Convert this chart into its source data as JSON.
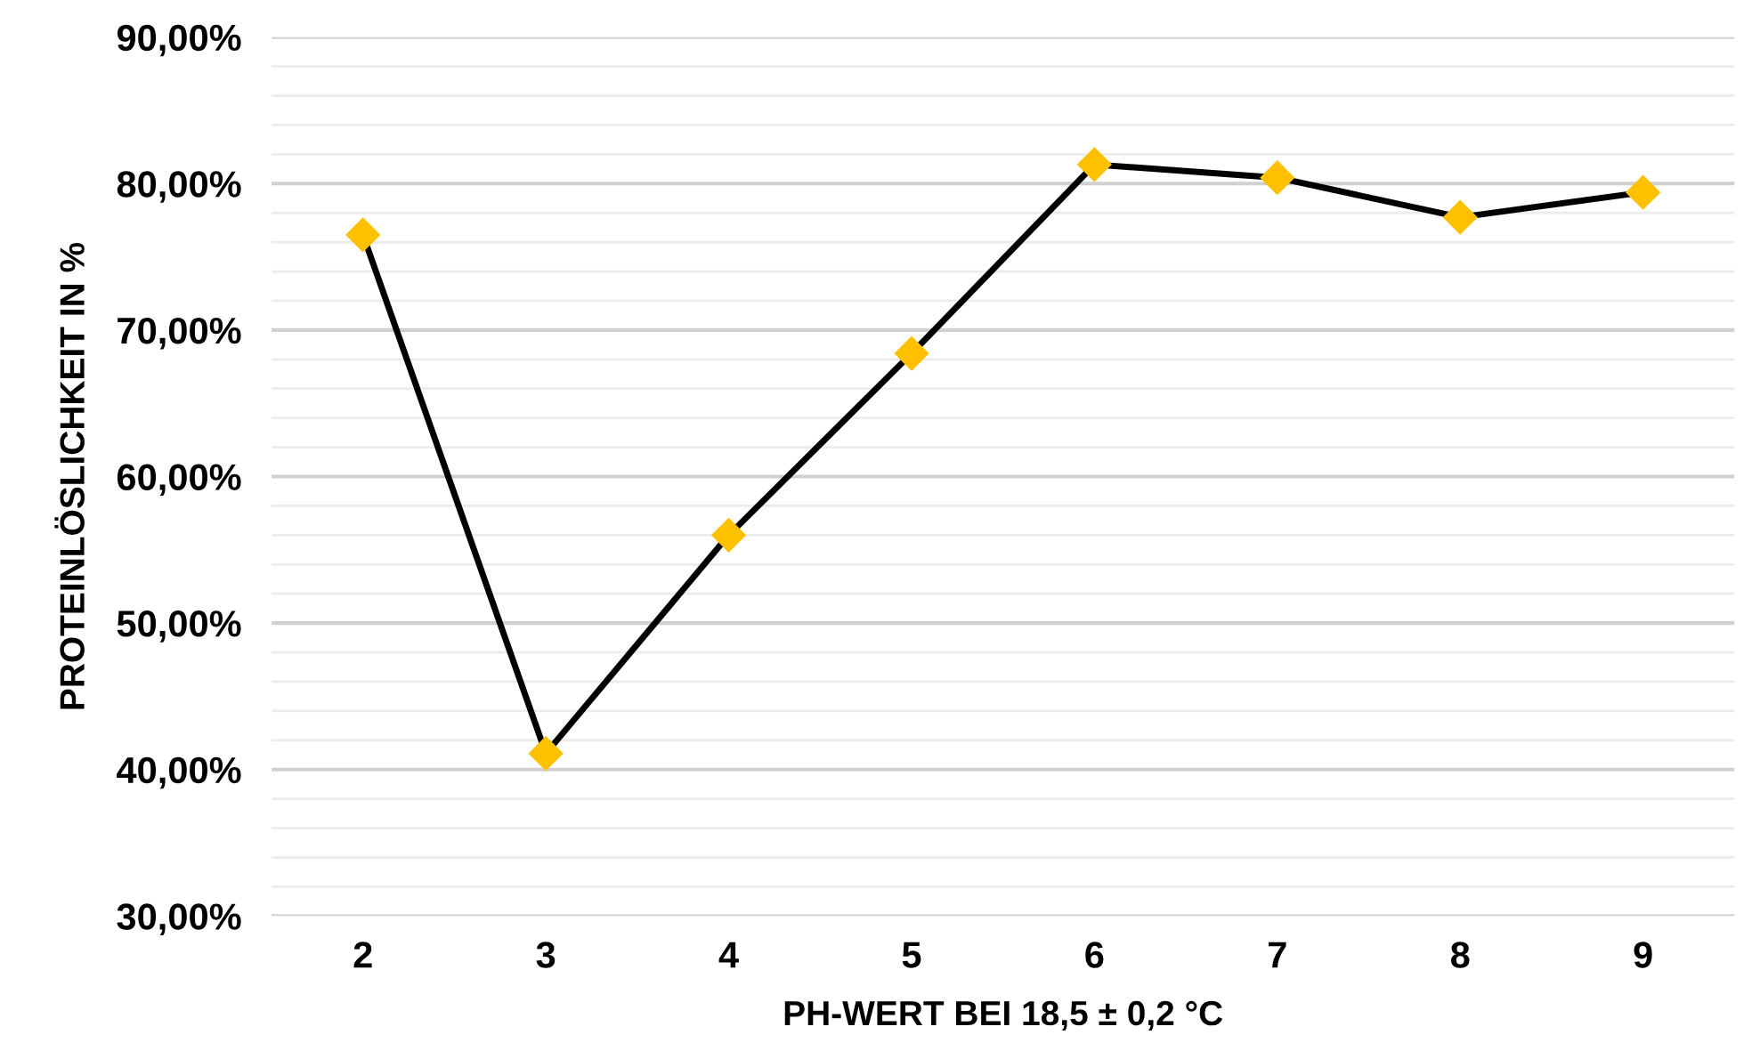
{
  "chart_data": {
    "type": "line",
    "xlabel": "PH-WERT BEI 18,5 ± 0,2 °C",
    "ylabel": "PROTEINLÖSLICHKEIT IN %",
    "categories": [
      "2",
      "3",
      "4",
      "5",
      "6",
      "7",
      "8",
      "9"
    ],
    "series": [
      {
        "color": "#ffc000",
        "values": [
          76.5,
          41.1,
          56.0,
          68.4,
          81.3,
          80.4,
          77.7,
          79.4
        ]
      }
    ],
    "marker": "diamond",
    "line_style": "solid",
    "grid": "y",
    "ylim": [
      30,
      90
    ],
    "yticks": [
      {
        "value": 30,
        "label": "30,00%"
      },
      {
        "value": 32,
        "label": null
      },
      {
        "value": 34,
        "label": null
      },
      {
        "value": 36,
        "label": null
      },
      {
        "value": 38,
        "label": null
      },
      {
        "value": 40,
        "label": "40,00%"
      },
      {
        "value": 42,
        "label": null
      },
      {
        "value": 44,
        "label": null
      },
      {
        "value": 46,
        "label": null
      },
      {
        "value": 48,
        "label": null
      },
      {
        "value": 50,
        "label": "50,00%"
      },
      {
        "value": 52,
        "label": null
      },
      {
        "value": 54,
        "label": null
      },
      {
        "value": 56,
        "label": null
      },
      {
        "value": 58,
        "label": null
      },
      {
        "value": 60,
        "label": "60,00%"
      },
      {
        "value": 62,
        "label": null
      },
      {
        "value": 64,
        "label": null
      },
      {
        "value": 66,
        "label": null
      },
      {
        "value": 68,
        "label": null
      },
      {
        "value": 70,
        "label": "70,00%"
      },
      {
        "value": 72,
        "label": null
      },
      {
        "value": 74,
        "label": null
      },
      {
        "value": 76,
        "label": null
      },
      {
        "value": 78,
        "label": null
      },
      {
        "value": 80,
        "label": "80,00%"
      },
      {
        "value": 82,
        "label": null
      },
      {
        "value": 84,
        "label": null
      },
      {
        "value": 86,
        "label": null
      },
      {
        "value": 88,
        "label": null
      },
      {
        "value": 90,
        "label": "90,00%"
      }
    ]
  }
}
